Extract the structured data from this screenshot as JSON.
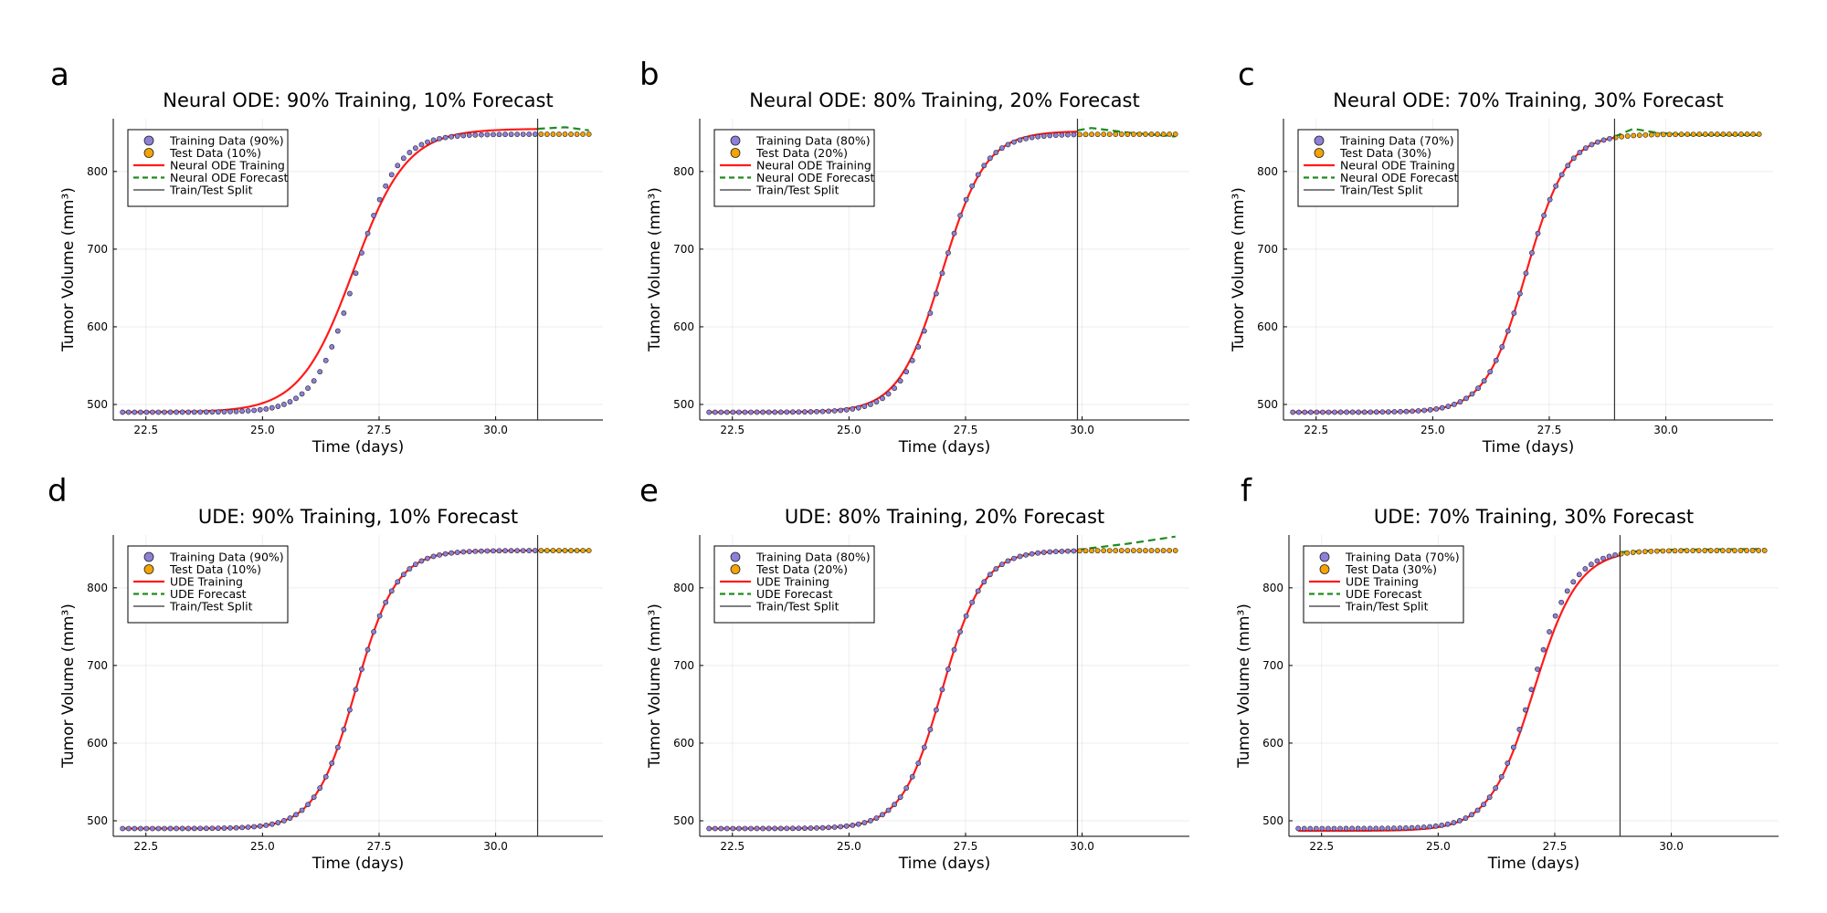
{
  "colors": {
    "training_marker": "#8f7fd9",
    "test_marker": "#f5a300",
    "training_line": "#ff1a1a",
    "forecast_line": "#1f8c1f",
    "split_line": "#333333"
  },
  "chart_data": [
    {
      "letter": "a",
      "title": "Neural ODE: 90% Training, 10% Forecast",
      "type": "line",
      "xlabel": "Time (days)",
      "ylabel": "Tumor Volume (mm³)",
      "xlim": [
        21.8,
        32.3
      ],
      "ylim": [
        480,
        868
      ],
      "xticks": [
        22.5,
        25.0,
        27.5,
        30.0
      ],
      "xtick_labels": [
        "22.5",
        "25.0",
        "27.5",
        "30.0"
      ],
      "yticks": [
        500,
        600,
        700,
        800
      ],
      "ytick_labels": [
        "500",
        "600",
        "700",
        "800"
      ],
      "grid": true,
      "legend_position": "top-left",
      "data_range": {
        "t_start": 22.0,
        "t_end": 32.0,
        "v_start": 490,
        "v_max": 848,
        "t_mid": 27.0,
        "k": 2.3,
        "n_points": 79
      },
      "split_x": 30.9,
      "legend": [
        "Training Data (90%)",
        "Test Data (10%)",
        "Neural ODE Training",
        "Neural ODE Forecast",
        "Train/Test Split"
      ],
      "fit_line": {
        "type": "smooth",
        "t_mid": 26.95,
        "k": 1.75,
        "v_min": 490,
        "v_max": 855
      },
      "forecast_line": {
        "type": "bump",
        "points": [
          [
            30.9,
            855
          ],
          [
            31.5,
            857
          ],
          [
            32.0,
            853
          ]
        ]
      }
    },
    {
      "letter": "b",
      "title": "Neural ODE: 80% Training, 20% Forecast",
      "type": "line",
      "xlabel": "Time (days)",
      "ylabel": "Tumor Volume (mm³)",
      "xlim": [
        21.8,
        32.3
      ],
      "ylim": [
        480,
        868
      ],
      "xticks": [
        22.5,
        25.0,
        27.5,
        30.0
      ],
      "xtick_labels": [
        "22.5",
        "25.0",
        "27.5",
        "30.0"
      ],
      "yticks": [
        500,
        600,
        700,
        800
      ],
      "ytick_labels": [
        "500",
        "600",
        "700",
        "800"
      ],
      "grid": true,
      "legend_position": "top-left",
      "data_range": {
        "t_start": 22.0,
        "t_end": 32.0,
        "v_start": 490,
        "v_max": 848,
        "t_mid": 27.0,
        "k": 2.3,
        "n_points": 79
      },
      "split_x": 29.9,
      "legend": [
        "Training Data (80%)",
        "Test Data (20%)",
        "Neural ODE Training",
        "Neural ODE Forecast",
        "Train/Test Split"
      ],
      "fit_line": {
        "type": "smooth",
        "t_mid": 27.0,
        "k": 2.15,
        "v_min": 490,
        "v_max": 852
      },
      "forecast_line": {
        "type": "bump",
        "points": [
          [
            29.9,
            853
          ],
          [
            30.2,
            856
          ],
          [
            31.0,
            850
          ],
          [
            32.0,
            845
          ]
        ]
      }
    },
    {
      "letter": "c",
      "title": "Neural ODE: 70% Training, 30% Forecast",
      "type": "line",
      "xlabel": "Time (days)",
      "ylabel": "Tumor Volume (mm³)",
      "xlim": [
        21.8,
        32.3
      ],
      "ylim": [
        480,
        868
      ],
      "xticks": [
        22.5,
        25.0,
        27.5,
        30.0
      ],
      "xtick_labels": [
        "22.5",
        "25.0",
        "27.5",
        "30.0"
      ],
      "yticks": [
        500,
        600,
        700,
        800
      ],
      "ytick_labels": [
        "500",
        "600",
        "700",
        "800"
      ],
      "grid": true,
      "legend_position": "top-left",
      "data_range": {
        "t_start": 22.0,
        "t_end": 32.0,
        "v_start": 490,
        "v_max": 848,
        "t_mid": 27.0,
        "k": 2.3,
        "n_points": 79
      },
      "split_x": 28.9,
      "legend": [
        "Training Data (70%)",
        "Test Data (30%)",
        "Neural ODE Training",
        "Neural ODE Forecast",
        "Train/Test Split"
      ],
      "fit_line": {
        "type": "smooth",
        "t_mid": 27.0,
        "k": 2.3,
        "v_min": 490,
        "v_max": 848
      },
      "forecast_line": {
        "type": "bump",
        "points": [
          [
            28.9,
            845
          ],
          [
            29.3,
            855
          ],
          [
            29.8,
            850
          ],
          [
            30.5,
            847
          ],
          [
            32.0,
            847
          ]
        ]
      }
    },
    {
      "letter": "d",
      "title": "UDE: 90% Training, 10% Forecast",
      "type": "line",
      "xlabel": "Time (days)",
      "ylabel": "Tumor Volume (mm³)",
      "xlim": [
        21.8,
        32.3
      ],
      "ylim": [
        480,
        868
      ],
      "xticks": [
        22.5,
        25.0,
        27.5,
        30.0
      ],
      "xtick_labels": [
        "22.5",
        "25.0",
        "27.5",
        "30.0"
      ],
      "yticks": [
        500,
        600,
        700,
        800
      ],
      "ytick_labels": [
        "500",
        "600",
        "700",
        "800"
      ],
      "grid": true,
      "legend_position": "top-left",
      "data_range": {
        "t_start": 22.0,
        "t_end": 32.0,
        "v_start": 490,
        "v_max": 848,
        "t_mid": 27.0,
        "k": 2.3,
        "n_points": 79
      },
      "split_x": 30.9,
      "legend": [
        "Training Data (90%)",
        "Test Data (10%)",
        "UDE Training",
        "UDE Forecast",
        "Train/Test Split"
      ],
      "fit_line": {
        "type": "smooth",
        "t_mid": 27.0,
        "k": 2.3,
        "v_min": 490,
        "v_max": 848
      },
      "forecast_line": {
        "type": "bump",
        "points": [
          [
            30.9,
            848
          ],
          [
            32.0,
            848
          ]
        ]
      }
    },
    {
      "letter": "e",
      "title": "UDE: 80% Training, 20% Forecast",
      "type": "line",
      "xlabel": "Time (days)",
      "ylabel": "Tumor Volume (mm³)",
      "xlim": [
        21.8,
        32.3
      ],
      "ylim": [
        480,
        868
      ],
      "xticks": [
        22.5,
        25.0,
        27.5,
        30.0
      ],
      "xtick_labels": [
        "22.5",
        "25.0",
        "27.5",
        "30.0"
      ],
      "yticks": [
        500,
        600,
        700,
        800
      ],
      "ytick_labels": [
        "500",
        "600",
        "700",
        "800"
      ],
      "grid": true,
      "legend_position": "top-left",
      "data_range": {
        "t_start": 22.0,
        "t_end": 32.0,
        "v_start": 490,
        "v_max": 848,
        "t_mid": 27.0,
        "k": 2.3,
        "n_points": 79
      },
      "split_x": 29.9,
      "legend": [
        "Training Data (80%)",
        "Test Data (20%)",
        "UDE Training",
        "UDE Forecast",
        "Train/Test Split"
      ],
      "fit_line": {
        "type": "smooth",
        "t_mid": 27.0,
        "k": 2.3,
        "v_min": 490,
        "v_max": 848
      },
      "forecast_line": {
        "type": "bump",
        "points": [
          [
            29.9,
            849
          ],
          [
            31.0,
            857
          ],
          [
            32.0,
            866
          ]
        ]
      }
    },
    {
      "letter": "f",
      "title": "UDE: 70% Training, 30% Forecast",
      "type": "line",
      "xlabel": "Time (days)",
      "ylabel": "Tumor Volume (mm³)",
      "xlim": [
        21.8,
        32.3
      ],
      "ylim": [
        480,
        868
      ],
      "xticks": [
        22.5,
        25.0,
        27.5,
        30.0
      ],
      "xtick_labels": [
        "22.5",
        "25.0",
        "27.5",
        "30.0"
      ],
      "yticks": [
        500,
        600,
        700,
        800
      ],
      "ytick_labels": [
        "500",
        "600",
        "700",
        "800"
      ],
      "grid": true,
      "legend_position": "top-left",
      "data_range": {
        "t_start": 22.0,
        "t_end": 32.0,
        "v_start": 490,
        "v_max": 848,
        "t_mid": 27.0,
        "k": 2.3,
        "n_points": 79
      },
      "split_x": 28.9,
      "legend": [
        "Training Data (70%)",
        "Test Data (30%)",
        "UDE Training",
        "UDE Forecast",
        "Train/Test Split"
      ],
      "fit_line": {
        "type": "smooth",
        "t_mid": 27.05,
        "k": 2.1,
        "v_min": 487,
        "v_max": 849
      },
      "forecast_line": {
        "type": "bump",
        "points": [
          [
            28.9,
            846
          ],
          [
            30.0,
            849
          ],
          [
            32.0,
            850
          ]
        ]
      }
    }
  ]
}
